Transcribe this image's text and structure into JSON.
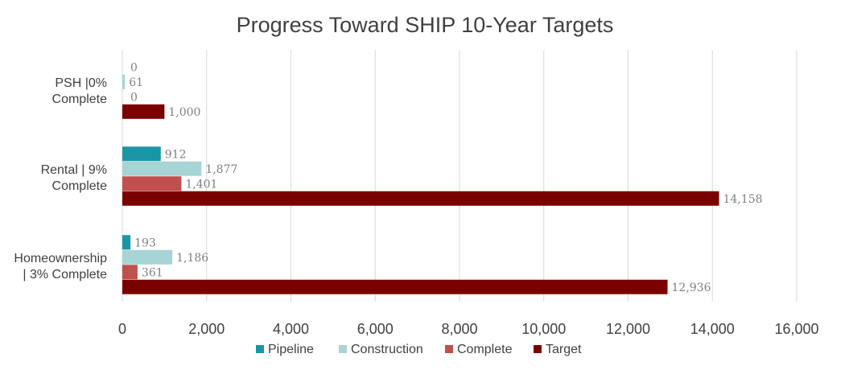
{
  "chart_data": {
    "type": "bar",
    "orientation": "horizontal",
    "title": "Progress Toward SHIP 10-Year Targets",
    "xlabel": "",
    "ylabel": "",
    "xlim": [
      0,
      16000
    ],
    "x_ticks": [
      0,
      2000,
      4000,
      6000,
      8000,
      10000,
      12000,
      14000,
      16000
    ],
    "x_tick_labels": [
      "0",
      "2,000",
      "4,000",
      "6,000",
      "8,000",
      "10,000",
      "12,000",
      "14,000",
      "16,000"
    ],
    "grid": "vertical",
    "legend_position": "bottom",
    "categories": [
      {
        "lines": [
          "PSH |0%",
          "Complete"
        ]
      },
      {
        "lines": [
          "Rental | 9%",
          "Complete"
        ]
      },
      {
        "lines": [
          "Homeownership",
          "| 3% Complete"
        ]
      }
    ],
    "series": [
      {
        "name": "Pipeline",
        "color": "#1a96a8",
        "values": [
          0,
          912,
          193
        ],
        "labels": [
          "0",
          "912",
          "193"
        ]
      },
      {
        "name": "Construction",
        "color": "#a7d4d4",
        "values": [
          61,
          1877,
          1186
        ],
        "labels": [
          "61",
          "1,877",
          "1,186"
        ]
      },
      {
        "name": "Complete",
        "color": "#c0504d",
        "values": [
          0,
          1401,
          361
        ],
        "labels": [
          "0",
          "1,401",
          "361"
        ]
      },
      {
        "name": "Target",
        "color": "#7b0000",
        "values": [
          1000,
          14158,
          12936
        ],
        "labels": [
          "1,000",
          "14,158",
          "12,936"
        ]
      }
    ]
  }
}
